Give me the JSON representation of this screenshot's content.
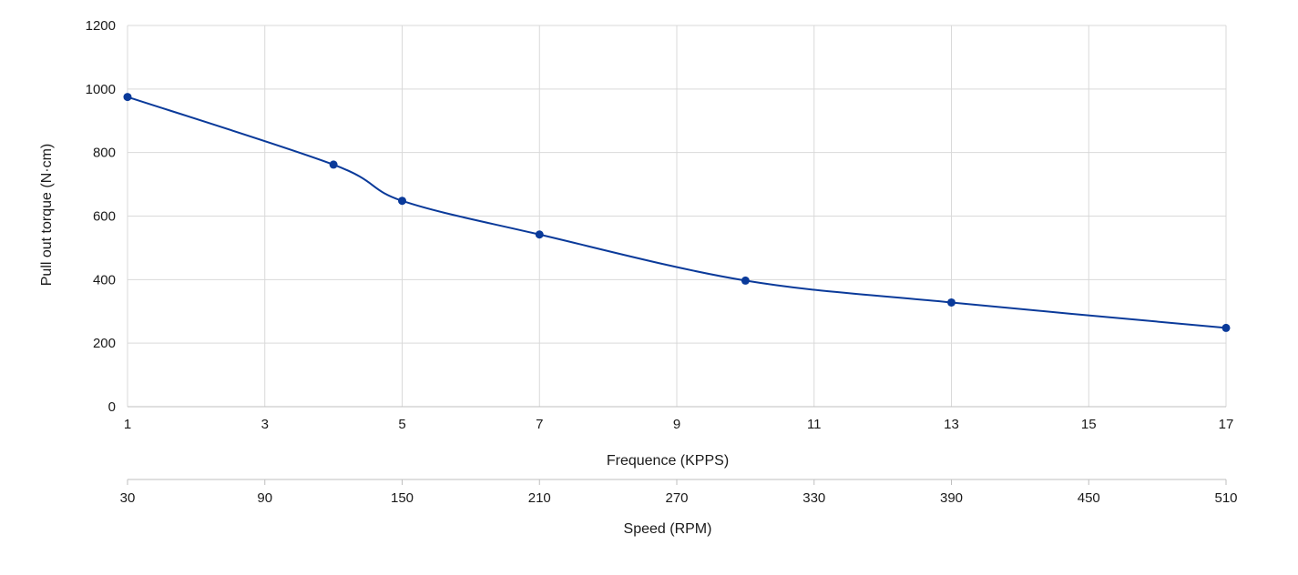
{
  "chart_data": {
    "type": "line",
    "title": "",
    "ylabel": "Pull out torque (N·cm)",
    "xlabel": "Frequence (KPPS)",
    "x2label": "Speed (RPM)",
    "ylim": [
      0,
      1200
    ],
    "yticks": [
      0,
      200,
      400,
      600,
      800,
      1000,
      1200
    ],
    "xlim": [
      1,
      17
    ],
    "xticks": [
      1,
      3,
      5,
      7,
      9,
      11,
      13,
      15,
      17
    ],
    "x2ticks": [
      30,
      90,
      150,
      210,
      270,
      330,
      390,
      450,
      510
    ],
    "grid": true,
    "smooth": true,
    "series": [
      {
        "name": "Pull out torque",
        "color": "#0a3a9a",
        "x": [
          1,
          4,
          5,
          7,
          10,
          13,
          17
        ],
        "y": [
          975,
          762,
          648,
          542,
          397,
          328,
          248
        ]
      }
    ]
  }
}
